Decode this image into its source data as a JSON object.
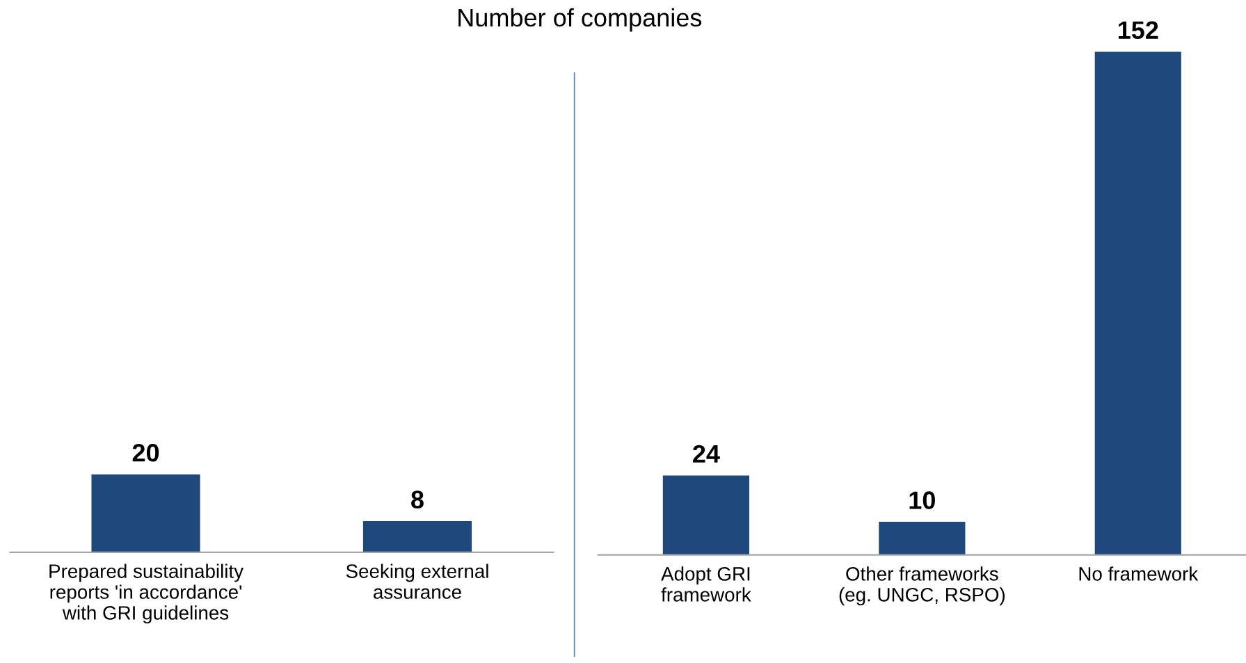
{
  "chart_data": [
    {
      "type": "bar",
      "title": "Number of companies",
      "categories": [
        "Prepared sustainability\nreports 'in accordance'\nwith GRI guidelines",
        "Seeking external\nassurance"
      ],
      "values": [
        20,
        8
      ],
      "color": "#1f497d",
      "data_labels": true,
      "tick_labels": "x",
      "grid": false,
      "legend": false
    },
    {
      "type": "bar",
      "categories": [
        "Adopt GRI\nframework",
        "Other frameworks\n(eg. UNGC, RSPO)",
        "No framework"
      ],
      "values": [
        24,
        10,
        152
      ],
      "color": "#1f497d",
      "data_labels": true,
      "tick_labels": "x",
      "grid": false,
      "legend": false
    }
  ]
}
